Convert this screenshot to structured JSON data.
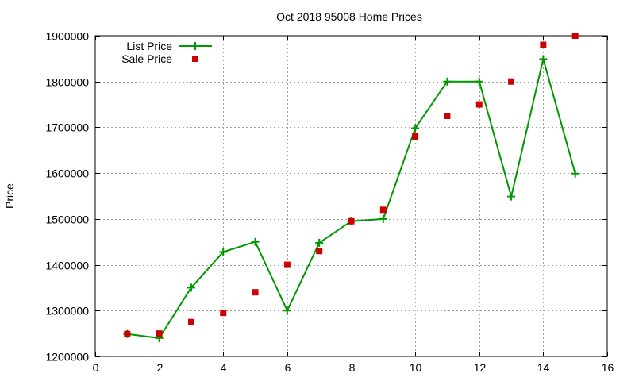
{
  "chart_data": {
    "type": "line",
    "title": "Oct 2018 95008 Home Prices",
    "xlabel": "",
    "ylabel": "Price",
    "xlim": [
      0,
      16
    ],
    "ylim": [
      1200000,
      1900000
    ],
    "xticks": [
      0,
      2,
      4,
      6,
      8,
      10,
      12,
      14,
      16
    ],
    "yticks": [
      1200000,
      1300000,
      1400000,
      1500000,
      1600000,
      1700000,
      1800000,
      1900000
    ],
    "grid": true,
    "legend_position": "top-left",
    "series": [
      {
        "name": "List Price",
        "style": "linespoints",
        "marker": "plus",
        "color": "#009900",
        "x": [
          1,
          2,
          3,
          4,
          5,
          6,
          7,
          8,
          9,
          10,
          11,
          12,
          13,
          14,
          15
        ],
        "y": [
          1249000,
          1240000,
          1350000,
          1428000,
          1450000,
          1300000,
          1448000,
          1495000,
          1500000,
          1698000,
          1800000,
          1800000,
          1549000,
          1849000,
          1599000
        ]
      },
      {
        "name": "Sale Price",
        "style": "points",
        "marker": "square",
        "color": "#cc0000",
        "x": [
          1,
          2,
          3,
          4,
          5,
          6,
          7,
          8,
          9,
          10,
          11,
          12,
          13,
          14,
          15
        ],
        "y": [
          1249000,
          1250000,
          1275000,
          1295000,
          1340000,
          1400000,
          1430000,
          1495000,
          1520000,
          1680000,
          1725000,
          1750000,
          1800000,
          1880000,
          1900000
        ]
      }
    ]
  }
}
